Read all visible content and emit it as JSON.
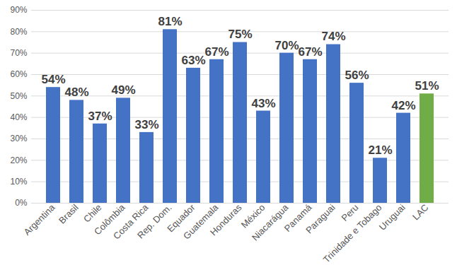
{
  "chart_data": {
    "type": "bar",
    "categories": [
      "Argentina",
      "Brasil",
      "Chile",
      "Colômbia",
      "Costa Rica",
      "Rep. Dom.",
      "Equador",
      "Guatemala",
      "Honduras",
      "México",
      "Niacarágua",
      "Panamá",
      "Paraguai",
      "Peru",
      "Trinidade e Tobago",
      "Uruguai",
      "LAC"
    ],
    "values": [
      54,
      48,
      37,
      49,
      33,
      81,
      63,
      67,
      75,
      43,
      70,
      67,
      74,
      56,
      21,
      42,
      51
    ],
    "value_labels": [
      "54%",
      "48%",
      "37%",
      "49%",
      "33%",
      "81%",
      "63%",
      "67%",
      "75%",
      "43%",
      "70%",
      "67%",
      "74%",
      "56%",
      "21%",
      "42%",
      "51%"
    ],
    "colors": [
      "#4472c4",
      "#4472c4",
      "#4472c4",
      "#4472c4",
      "#4472c4",
      "#4472c4",
      "#4472c4",
      "#4472c4",
      "#4472c4",
      "#4472c4",
      "#4472c4",
      "#4472c4",
      "#4472c4",
      "#4472c4",
      "#4472c4",
      "#4472c4",
      "#70ad47"
    ],
    "ylim": [
      0,
      90
    ],
    "yticks": [
      {
        "value": 0,
        "label": "0%"
      },
      {
        "value": 10,
        "label": "10%"
      },
      {
        "value": 20,
        "label": "20%"
      },
      {
        "value": 30,
        "label": "30%"
      },
      {
        "value": 40,
        "label": "40%"
      },
      {
        "value": 50,
        "label": "50%"
      },
      {
        "value": 60,
        "label": "60%"
      },
      {
        "value": 70,
        "label": "70%"
      },
      {
        "value": 80,
        "label": "80%"
      },
      {
        "value": 90,
        "label": "90%"
      }
    ],
    "grid": true,
    "data_labels": true
  }
}
